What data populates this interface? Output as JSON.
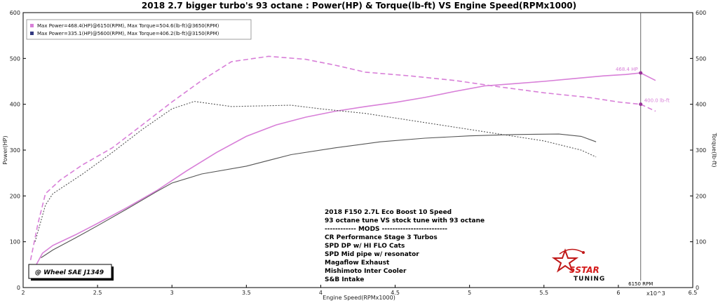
{
  "chart_data": {
    "type": "line",
    "title": "2018 2.7 bigger turbo's 93 octane : Power(HP) & Torque(lb-ft) VS Engine Speed(RPMx1000)",
    "xlabel": "Engine Speed(RPMx1000)",
    "ylabel_left": "Power(HP)",
    "ylabel_right": "Torque(lb-ft)",
    "x_multiplier": "x10^3",
    "xlim": [
      2,
      6.5
    ],
    "ylim": [
      0,
      600
    ],
    "x_ticks": [
      "2",
      "2.5",
      "3",
      "3.5",
      "4",
      "4.5",
      "5",
      "5.5",
      "6",
      "6.5"
    ],
    "y_ticks": [
      "0",
      "100",
      "200",
      "300",
      "400",
      "500",
      "600"
    ],
    "grid": false,
    "legend": {
      "position": "top-left",
      "entries": [
        {
          "label": "Max Power=468.4(HP)@6150(RPM), Max Torque=504.6(lb-ft)@3650(RPM)",
          "color": "#d87fd8"
        },
        {
          "label": "Max Power=335.1(HP)@5600(RPM), Max Torque=406.2(lb-ft)@3150(RPM)",
          "color": "#333a80"
        }
      ]
    },
    "series": [
      {
        "kind": "power",
        "run": 1,
        "color": "#d87fd8",
        "style": "solid",
        "x": [
          2.08,
          2.13,
          2.2,
          2.35,
          2.5,
          2.7,
          2.9,
          3.1,
          3.3,
          3.5,
          3.7,
          3.9,
          4.1,
          4.3,
          4.5,
          4.7,
          4.9,
          5.1,
          5.3,
          5.5,
          5.7,
          5.9,
          6.05,
          6.15,
          6.25
        ],
        "y": [
          45,
          75,
          92,
          115,
          140,
          175,
          212,
          255,
          295,
          330,
          355,
          372,
          385,
          395,
          404,
          415,
          428,
          440,
          445,
          450,
          456,
          462,
          465,
          468.4,
          452
        ]
      },
      {
        "kind": "torque",
        "run": 1,
        "color": "#d87fd8",
        "style": "dashed",
        "x": [
          2.05,
          2.1,
          2.15,
          2.25,
          2.4,
          2.6,
          2.8,
          3.0,
          3.2,
          3.4,
          3.65,
          3.9,
          4.1,
          4.3,
          4.6,
          4.9,
          5.2,
          5.5,
          5.8,
          6.0,
          6.15,
          6.25
        ],
        "y": [
          60,
          140,
          205,
          235,
          268,
          305,
          355,
          405,
          452,
          493,
          504.6,
          498,
          485,
          470,
          462,
          452,
          438,
          425,
          415,
          405,
          400,
          385
        ]
      },
      {
        "kind": "power",
        "run": 2,
        "color": "#555555",
        "style": "solid",
        "x": [
          2.12,
          2.2,
          2.35,
          2.5,
          2.7,
          2.9,
          3.0,
          3.2,
          3.5,
          3.8,
          4.1,
          4.4,
          4.7,
          5.0,
          5.3,
          5.6,
          5.75,
          5.85
        ],
        "y": [
          65,
          82,
          108,
          135,
          172,
          210,
          228,
          248,
          265,
          290,
          305,
          318,
          326,
          331,
          334,
          335.1,
          330,
          318
        ]
      },
      {
        "kind": "torque",
        "run": 2,
        "color": "#555555",
        "style": "dotted",
        "x": [
          2.08,
          2.15,
          2.2,
          2.4,
          2.6,
          2.8,
          3.0,
          3.15,
          3.4,
          3.8,
          4.0,
          4.3,
          4.6,
          4.9,
          5.2,
          5.5,
          5.75,
          5.85
        ],
        "y": [
          100,
          180,
          205,
          248,
          295,
          345,
          390,
          406.2,
          395,
          398,
          390,
          380,
          365,
          350,
          335,
          320,
          300,
          285
        ]
      }
    ],
    "annotations": {
      "cursor_rpm": 6.15,
      "cursor_label": "6150 RPM",
      "hp_marker": {
        "y": 468.4,
        "label": "468.4 HP"
      },
      "tq_marker": {
        "y": 400,
        "label": "400.0 lb-ft"
      }
    }
  },
  "notes": {
    "wheel_box": "@ Wheel SAE J1349",
    "lines": [
      "2018 F150 2.7L Eco Boost  10 Speed",
      "93 octane tune VS stock tune with 93 octane",
      "------------ MODS -------------------------",
      "CR Performance Stage 3 Turbos",
      "SPD DP w/ HI FLO Cats",
      "SPD Mid pipe w/ resonator",
      "Magaflow Exhaust",
      "Mishimoto Inter Cooler",
      "S&B Intake"
    ]
  },
  "logo": {
    "brand": "5STAR",
    "sub": "TUNING"
  }
}
